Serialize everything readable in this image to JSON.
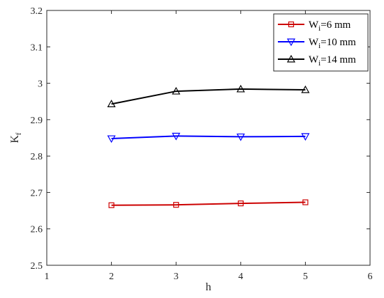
{
  "chart_data": {
    "type": "line",
    "xlabel": "h",
    "ylabel": "K",
    "ylabel_sub": "f",
    "xlim": [
      1,
      6
    ],
    "ylim": [
      2.5,
      3.2
    ],
    "xticks": [
      1,
      2,
      3,
      4,
      5,
      6
    ],
    "yticks": [
      2.5,
      2.6,
      2.7,
      2.8,
      2.9,
      3.0,
      3.1,
      3.2
    ],
    "xtick_labels": [
      "1",
      "2",
      "3",
      "4",
      "5",
      "6"
    ],
    "ytick_labels": [
      "2.5",
      "2.6",
      "2.7",
      "2.8",
      "2.9",
      "3",
      "3.1",
      "3.2"
    ],
    "grid": false,
    "legend_position": "top-right",
    "series": [
      {
        "name": "W",
        "name_sub": "i",
        "name_rest": "=6 mm",
        "color": "#cc0000",
        "marker": "square",
        "x": [
          2,
          3,
          4,
          5
        ],
        "y": [
          2.665,
          2.666,
          2.67,
          2.673
        ]
      },
      {
        "name": "W",
        "name_sub": "i",
        "name_rest": "=10 mm",
        "color": "#0000ff",
        "marker": "triangle-down",
        "x": [
          2,
          3,
          4,
          5
        ],
        "y": [
          2.848,
          2.855,
          2.853,
          2.854
        ]
      },
      {
        "name": "W",
        "name_sub": "i",
        "name_rest": "=14 mm",
        "color": "#000000",
        "marker": "triangle-up",
        "x": [
          2,
          3,
          4,
          5
        ],
        "y": [
          2.943,
          2.978,
          2.984,
          2.982
        ]
      }
    ]
  }
}
